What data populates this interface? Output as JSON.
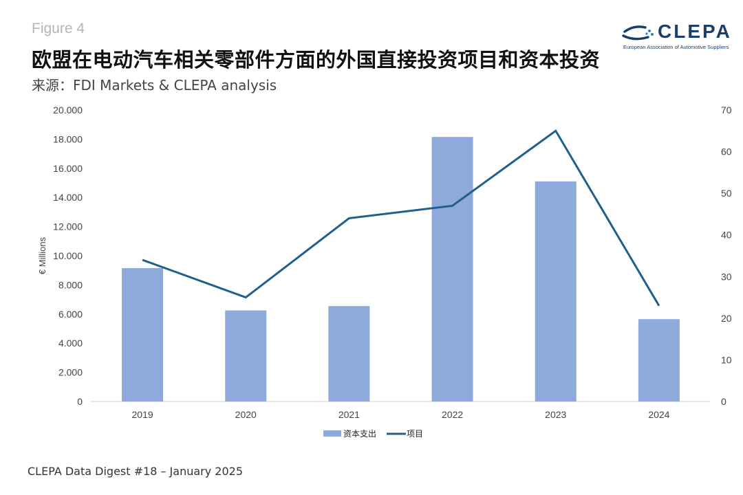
{
  "header": {
    "figure_label": "Figure 4",
    "title": "欧盟在电动汽车相关零部件方面的外国直接投资项目和资本投资",
    "subtitle": "来源：FDI Markets & CLEPA analysis"
  },
  "logo": {
    "wordmark": "CLEPA",
    "tagline": "European Association of Automotive Suppliers"
  },
  "footer": "CLEPA Data Digest #18 – January 2025",
  "chart_data": {
    "type": "bar",
    "categories": [
      "2019",
      "2020",
      "2021",
      "2022",
      "2023",
      "2024"
    ],
    "series": [
      {
        "name": "资本支出",
        "type": "bar",
        "axis": "left",
        "color": "#8eaadb",
        "values": [
          9150,
          6250,
          6550,
          18150,
          15100,
          5650
        ]
      },
      {
        "name": "项目",
        "type": "line",
        "axis": "right",
        "color": "#1f5f8b",
        "values": [
          34,
          25,
          44,
          47,
          65,
          23
        ]
      }
    ],
    "y_left": {
      "label": "€ Millions",
      "min": 0,
      "max": 20000,
      "ticks": [
        "0",
        "2.000",
        "4.000",
        "6.000",
        "8.000",
        "10.000",
        "12.000",
        "14.000",
        "16.000",
        "18.000",
        "20.000"
      ]
    },
    "y_right": {
      "label": "",
      "min": 0,
      "max": 70,
      "ticks": [
        "0",
        "10",
        "20",
        "30",
        "40",
        "50",
        "60",
        "70"
      ]
    },
    "grid": false,
    "legend_position": "bottom"
  }
}
